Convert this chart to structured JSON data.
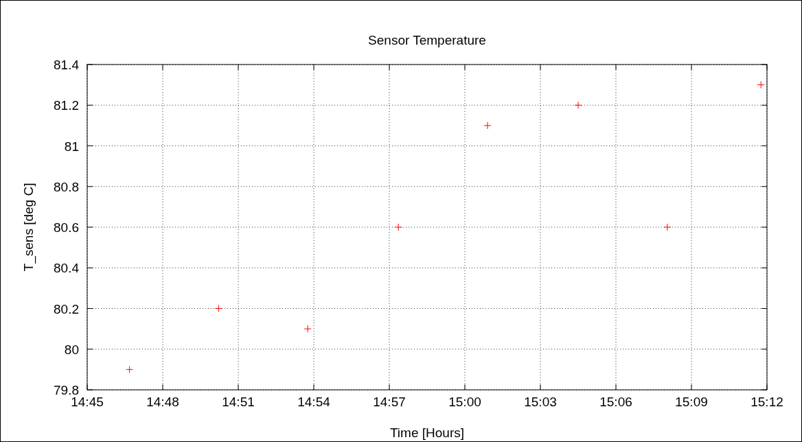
{
  "chart_data": {
    "type": "scatter",
    "title": "Sensor Temperature",
    "xlabel": "Time [Hours]",
    "ylabel": "T_sens [deg C]",
    "x": [
      14.778,
      14.837,
      14.896,
      14.956,
      15.015,
      15.075,
      15.134,
      15.196
    ],
    "series": [
      {
        "color": "#ff0000",
        "values": [
          79.9,
          80.2,
          80.1,
          80.6,
          81.1,
          81.2,
          80.6,
          81.3
        ]
      }
    ],
    "xlim": [
      14.75,
      15.2
    ],
    "xticks": [
      {
        "value": 14.75,
        "label": "14:45"
      },
      {
        "value": 14.8,
        "label": "14:48"
      },
      {
        "value": 14.85,
        "label": "14:51"
      },
      {
        "value": 14.9,
        "label": "14:54"
      },
      {
        "value": 14.95,
        "label": "14:57"
      },
      {
        "value": 15,
        "label": "15:00"
      },
      {
        "value": 15.05,
        "label": "15:03"
      },
      {
        "value": 15.1,
        "label": "15:06"
      },
      {
        "value": 15.15,
        "label": "15:09"
      },
      {
        "value": 15.2,
        "label": "15:12"
      }
    ],
    "ylim": [
      79.8,
      81.4
    ],
    "yticks": [
      79.8,
      80,
      80.2,
      80.4,
      80.6,
      80.8,
      81,
      81.2,
      81.4
    ],
    "grid": true,
    "marker": "cross"
  }
}
